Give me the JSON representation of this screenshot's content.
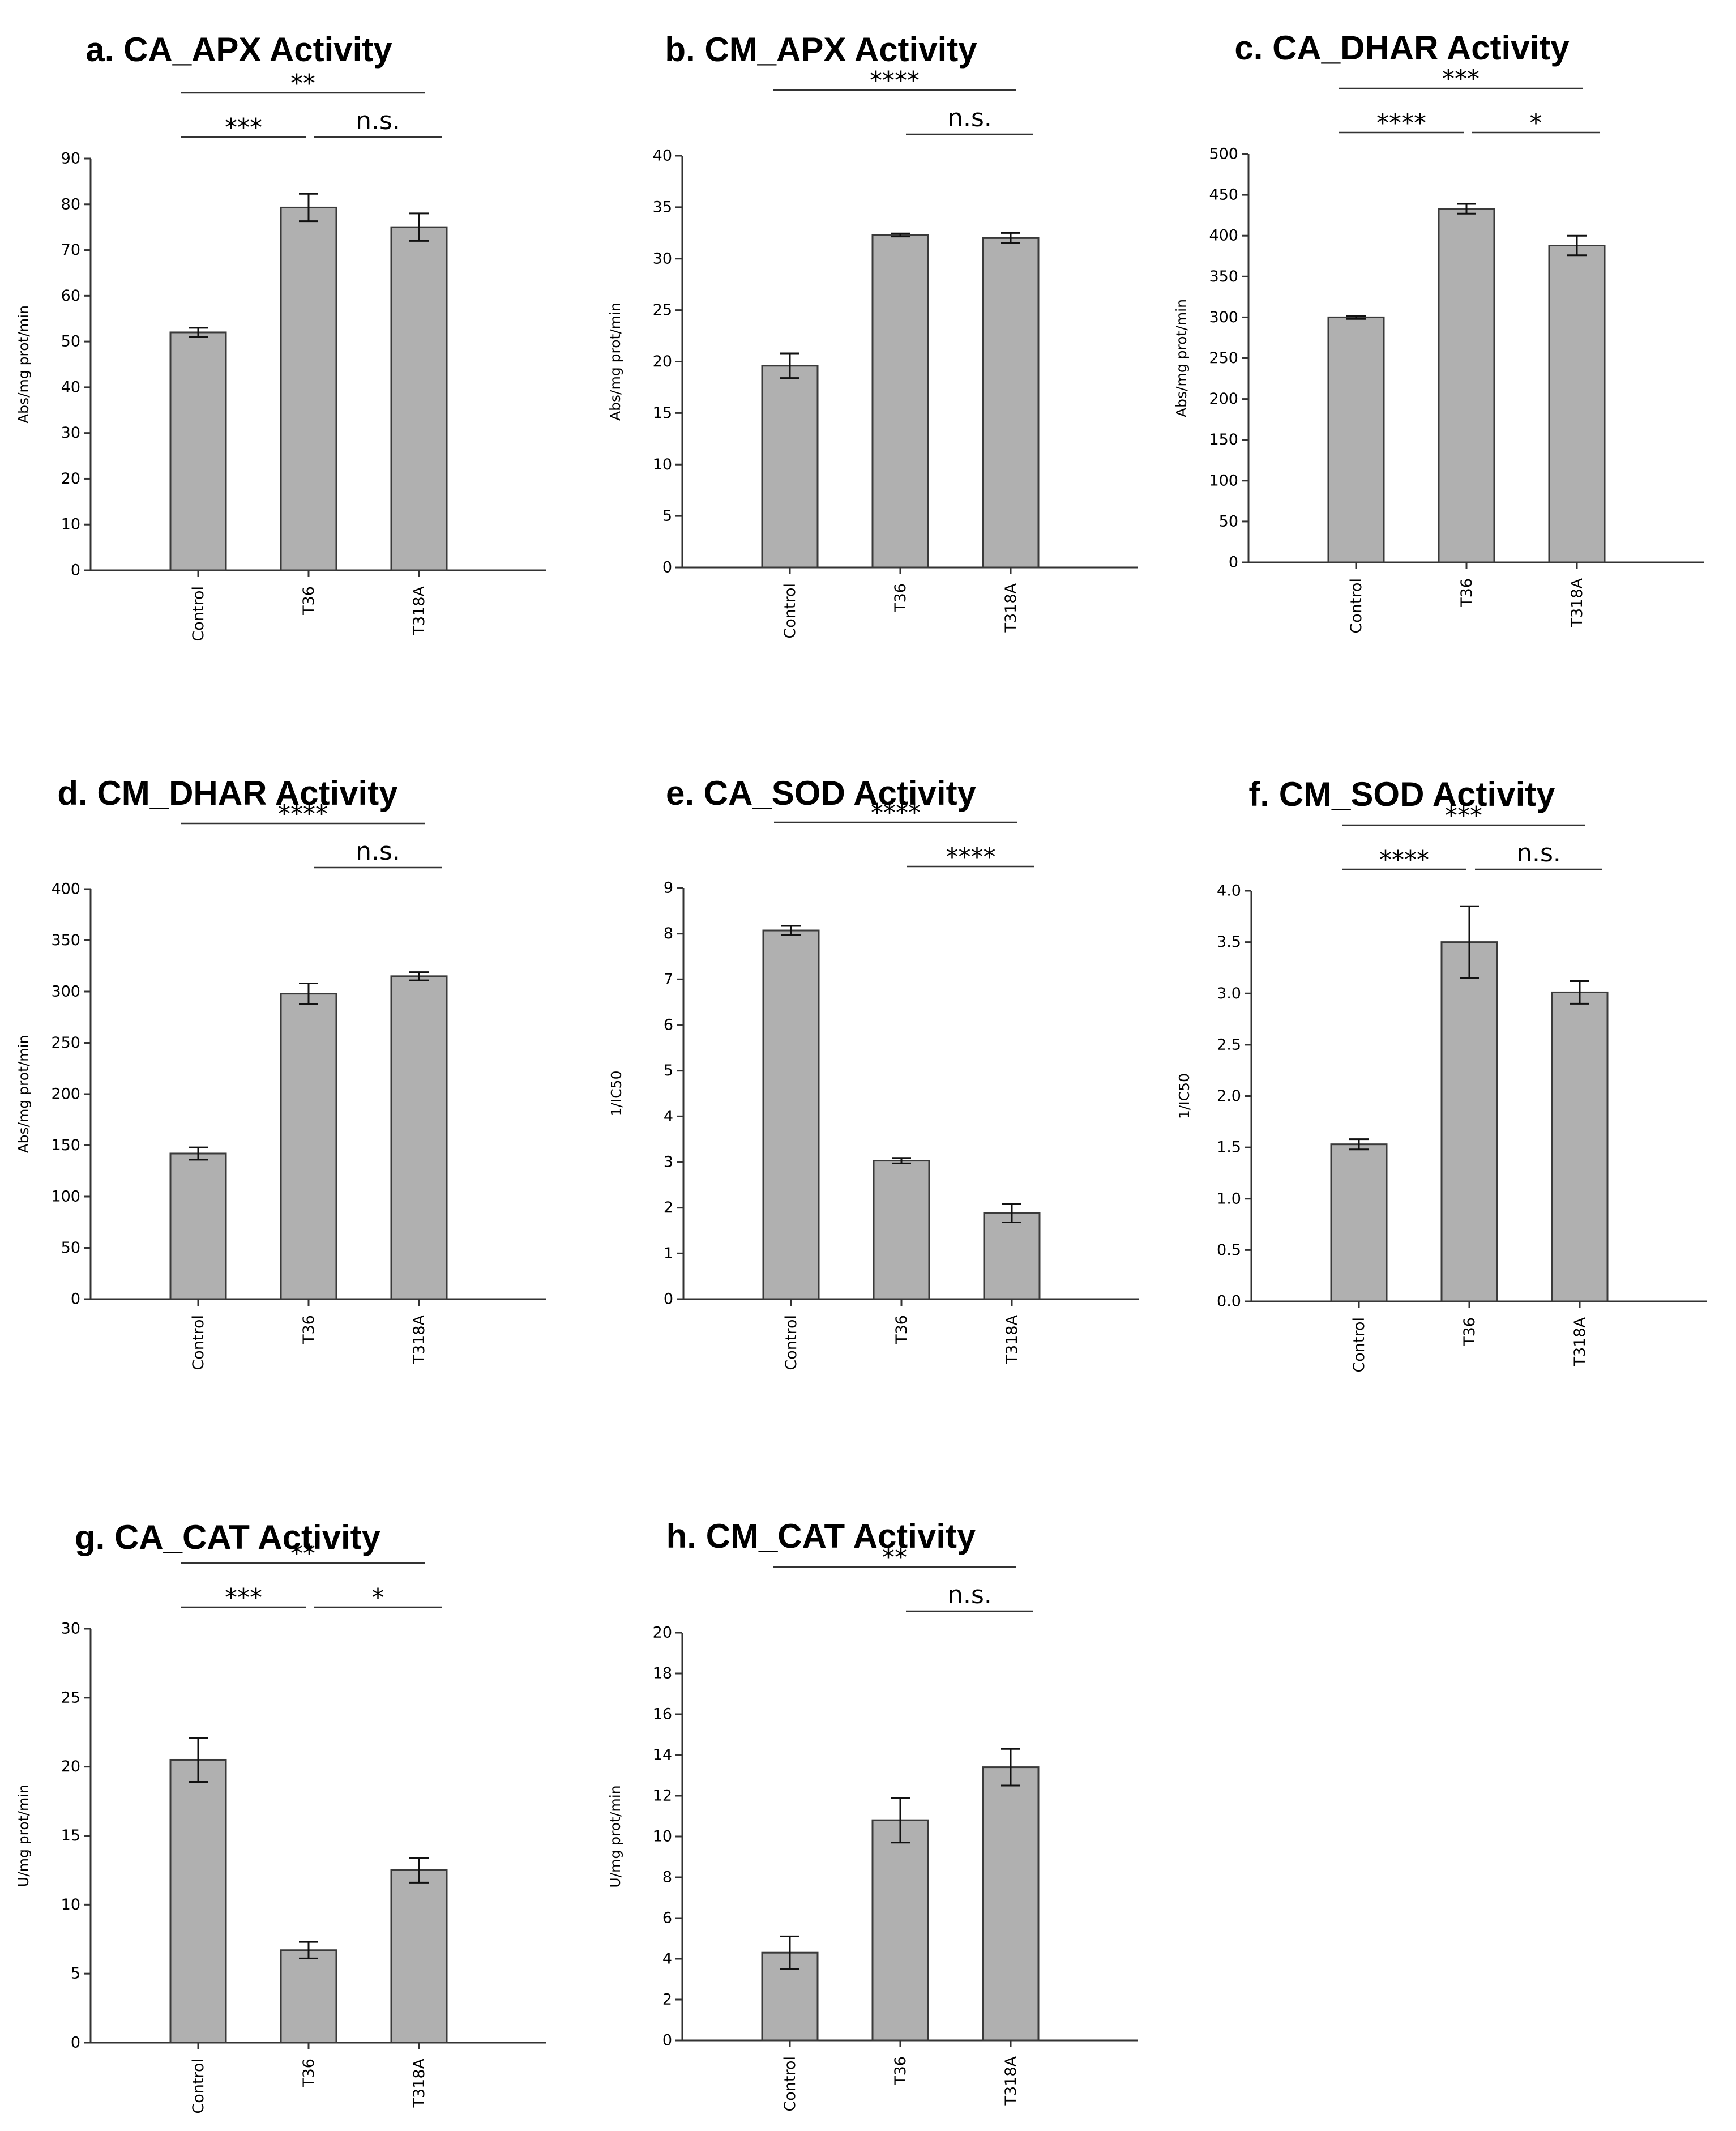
{
  "chart_data": [
    {
      "type": "bar",
      "title": "a. CA_APX Activity",
      "ylabel": "Abs/mg prot/min",
      "xlabel": "",
      "categories": [
        "Control",
        "T36",
        "T318A"
      ],
      "values": [
        52,
        79.3,
        75
      ],
      "errors": [
        1,
        3,
        3
      ],
      "ylim": [
        0,
        90
      ],
      "yticks": [
        0,
        10,
        20,
        30,
        40,
        50,
        60,
        70,
        80,
        90
      ],
      "significance": [
        {
          "from": 0,
          "to": 1,
          "label": "***"
        },
        {
          "from": 1,
          "to": 2,
          "label": "n.s."
        },
        {
          "from": 0,
          "to": 2,
          "label": "**"
        }
      ]
    },
    {
      "type": "bar",
      "title": "b. CM_APX Activity",
      "ylabel": "Abs/mg prot/min",
      "xlabel": "",
      "categories": [
        "Control",
        "T36",
        "T318A"
      ],
      "values": [
        19.6,
        32.3,
        32
      ],
      "errors": [
        1.2,
        0.15,
        0.5
      ],
      "ylim": [
        0,
        40
      ],
      "yticks": [
        0,
        5,
        10,
        15,
        20,
        25,
        30,
        35,
        40
      ],
      "significance": [
        {
          "from": 1,
          "to": 2,
          "label": "n.s."
        },
        {
          "from": 0,
          "to": 2,
          "label": "****"
        }
      ]
    },
    {
      "type": "bar",
      "title": "c. CA_DHAR Activity",
      "ylabel": "Abs/mg prot/min",
      "xlabel": "",
      "categories": [
        "Control",
        "T36",
        "T318A"
      ],
      "values": [
        300,
        433,
        388
      ],
      "errors": [
        2,
        6,
        12
      ],
      "ylim": [
        0,
        500
      ],
      "yticks": [
        0,
        50,
        100,
        150,
        200,
        250,
        300,
        350,
        400,
        450,
        500
      ],
      "significance": [
        {
          "from": 0,
          "to": 1,
          "label": "****"
        },
        {
          "from": 1,
          "to": 2,
          "label": "*"
        },
        {
          "from": 0,
          "to": 2,
          "label": "***"
        }
      ]
    },
    {
      "type": "bar",
      "title": "d. CM_DHAR Activity",
      "ylabel": "Abs/mg prot/min",
      "xlabel": "",
      "categories": [
        "Control",
        "T36",
        "T318A"
      ],
      "values": [
        142,
        298,
        315
      ],
      "errors": [
        6,
        10,
        4
      ],
      "ylim": [
        0,
        400
      ],
      "yticks": [
        0,
        50,
        100,
        150,
        200,
        250,
        300,
        350,
        400
      ],
      "significance": [
        {
          "from": 1,
          "to": 2,
          "label": "n.s."
        },
        {
          "from": 0,
          "to": 2,
          "label": "****"
        }
      ]
    },
    {
      "type": "bar",
      "title": "e. CA_SOD Activity",
      "ylabel": "1/IC50",
      "xlabel": "",
      "categories": [
        "Control",
        "T36",
        "T318A"
      ],
      "values": [
        8.07,
        3.03,
        1.88
      ],
      "errors": [
        0.1,
        0.06,
        0.2
      ],
      "ylim": [
        0,
        9
      ],
      "yticks": [
        0,
        1,
        2,
        3,
        4,
        5,
        6,
        7,
        8,
        9
      ],
      "significance": [
        {
          "from": 1,
          "to": 2,
          "label": "****"
        },
        {
          "from": 0,
          "to": 2,
          "label": "****"
        }
      ]
    },
    {
      "type": "bar",
      "title": "f. CM_SOD Activity",
      "ylabel": "1/IC50",
      "xlabel": "",
      "categories": [
        "Control",
        "T36",
        "T318A"
      ],
      "values": [
        1.53,
        3.5,
        3.01
      ],
      "errors": [
        0.05,
        0.35,
        0.11
      ],
      "ylim": [
        0,
        4
      ],
      "yticks": [
        "0.0",
        "0.5",
        "1.0",
        "1.5",
        "2.0",
        "2.5",
        "3.0",
        "3.5",
        "4.0"
      ],
      "significance": [
        {
          "from": 0,
          "to": 1,
          "label": "****"
        },
        {
          "from": 1,
          "to": 2,
          "label": "n.s."
        },
        {
          "from": 0,
          "to": 2,
          "label": "***"
        }
      ]
    },
    {
      "type": "bar",
      "title": "g. CA_CAT Activity",
      "ylabel": "U/mg prot/min",
      "xlabel": "",
      "categories": [
        "Control",
        "T36",
        "T318A"
      ],
      "values": [
        20.5,
        6.7,
        12.5
      ],
      "errors": [
        1.6,
        0.6,
        0.9
      ],
      "ylim": [
        0,
        30
      ],
      "yticks": [
        0,
        5,
        10,
        15,
        20,
        25,
        30
      ],
      "significance": [
        {
          "from": 0,
          "to": 1,
          "label": "***"
        },
        {
          "from": 1,
          "to": 2,
          "label": "*"
        },
        {
          "from": 0,
          "to": 2,
          "label": "**"
        }
      ]
    },
    {
      "type": "bar",
      "title": "h. CM_CAT Activity",
      "ylabel": "U/mg prot/min",
      "xlabel": "",
      "categories": [
        "Control",
        "T36",
        "T318A"
      ],
      "values": [
        4.3,
        10.8,
        13.4
      ],
      "errors": [
        0.8,
        1.1,
        0.9
      ],
      "ylim": [
        0,
        20
      ],
      "yticks": [
        0,
        2,
        4,
        6,
        8,
        10,
        12,
        14,
        16,
        18,
        20
      ],
      "significance": [
        {
          "from": 1,
          "to": 2,
          "label": "n.s."
        },
        {
          "from": 0,
          "to": 2,
          "label": "**"
        }
      ]
    }
  ]
}
